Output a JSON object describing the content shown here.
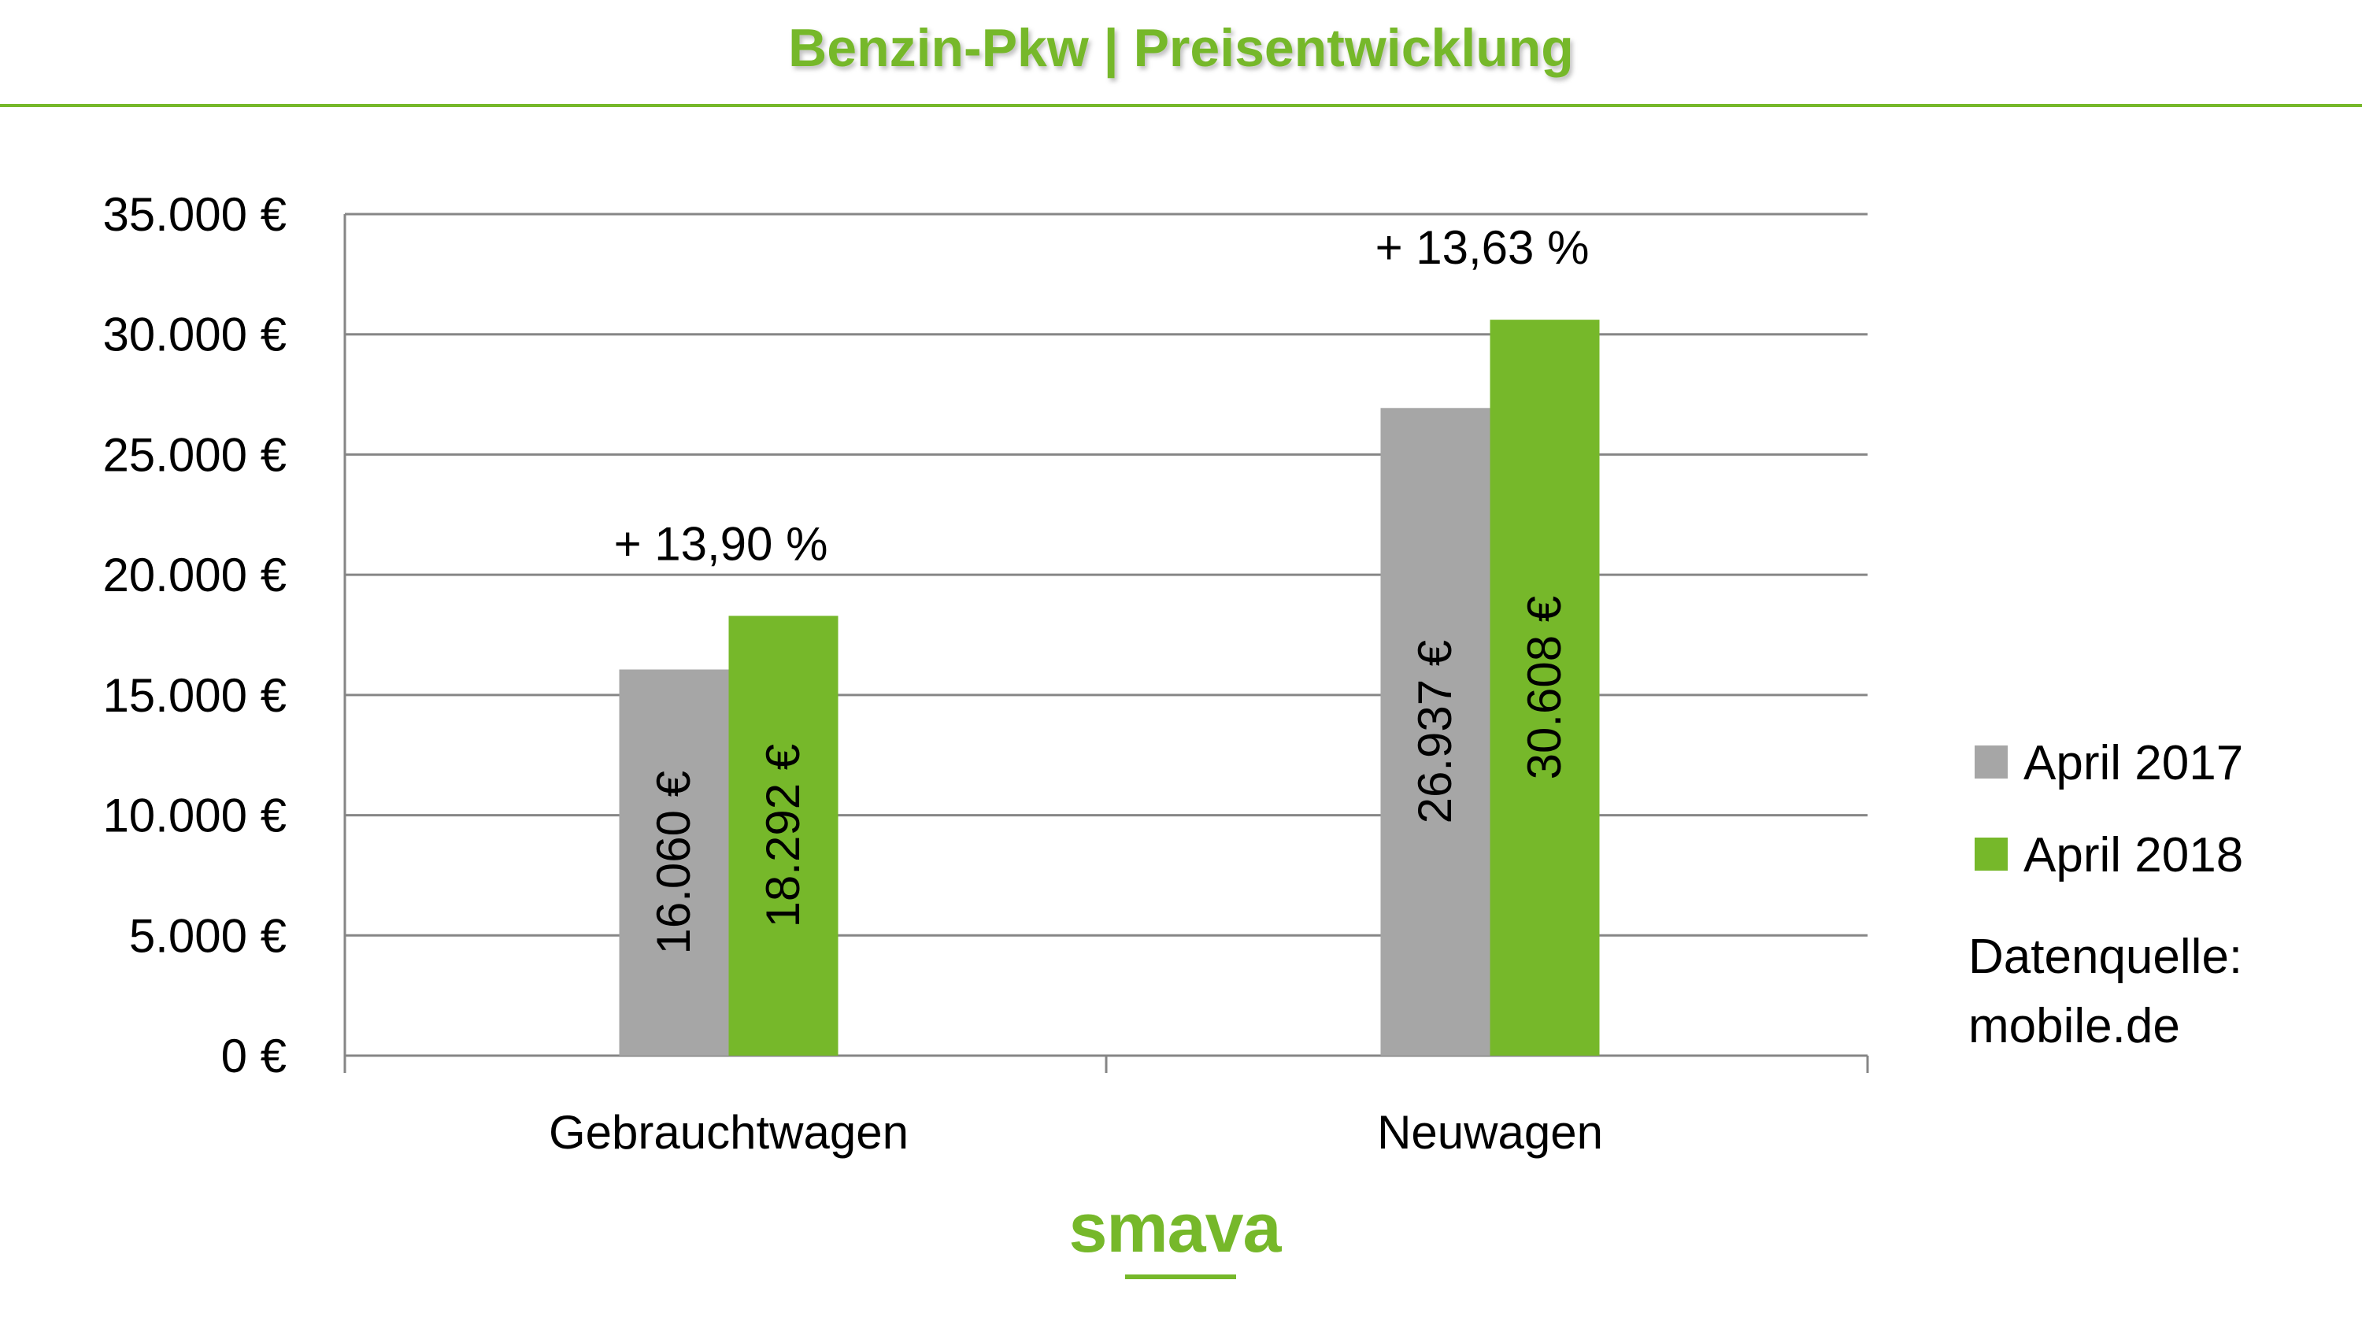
{
  "title": "Benzin-Pkw | Preisentwicklung",
  "colors": {
    "accent": "#76b82a",
    "gray": "#a6a6a6",
    "grid": "#868686"
  },
  "chart_data": {
    "type": "bar",
    "title": "Benzin-Pkw | Preisentwicklung",
    "categories": [
      "Gebrauchtwagen",
      "Neuwagen"
    ],
    "series": [
      {
        "name": "April 2017",
        "values": [
          16060,
          26937
        ],
        "labels": [
          "16.060 €",
          "26.937 €"
        ],
        "color": "#a6a6a6"
      },
      {
        "name": "April 2018",
        "values": [
          18292,
          30608
        ],
        "labels": [
          "18.292 €",
          "30.608 €"
        ],
        "color": "#76b82a"
      }
    ],
    "annotations": [
      "+ 13,90 %",
      "+ 13,63 %"
    ],
    "ylim": [
      0,
      35000
    ],
    "yticks": [
      0,
      5000,
      10000,
      15000,
      20000,
      25000,
      30000,
      35000
    ],
    "ytick_labels": [
      "0 €",
      "5.000 €",
      "10.000 €",
      "15.000 €",
      "20.000 €",
      "25.000 €",
      "30.000 €",
      "35.000 €"
    ],
    "grid": true,
    "legend_position": "right",
    "xlabel": "",
    "ylabel": ""
  },
  "source": {
    "line1": "Datenquelle:",
    "line2": "mobile.de"
  },
  "logo": "smava"
}
